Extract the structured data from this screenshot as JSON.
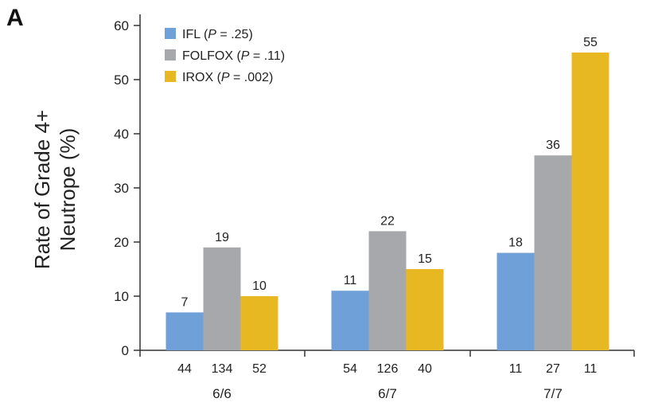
{
  "panel_label": "A",
  "colors": {
    "IFL": "#6fa0d8",
    "FOLFOX": "#a7a8ab",
    "IROX": "#e8b822"
  },
  "chart_data": {
    "type": "bar",
    "ylabel_lines": [
      "Rate of Grade 4+",
      "Neutrope (%)"
    ],
    "ylim": [
      0,
      60
    ],
    "yticks": [
      0,
      10,
      20,
      30,
      40,
      50,
      60
    ],
    "legend_position": "top-left",
    "grid": false,
    "categories": [
      "6/6",
      "6/7",
      "7/7"
    ],
    "series": [
      {
        "key": "IFL",
        "name": "IFL",
        "p_value": "= .25",
        "values": [
          7,
          11,
          18
        ],
        "n": [
          "44",
          "54",
          "11"
        ]
      },
      {
        "key": "FOLFOX",
        "name": "FOLFOX",
        "p_value": "= .11",
        "values": [
          19,
          22,
          36
        ],
        "n": [
          "134",
          "126",
          "27"
        ]
      },
      {
        "key": "IROX",
        "name": "IROX",
        "p_value": "= .002",
        "values": [
          10,
          15,
          55
        ],
        "n": [
          "52",
          "40",
          "11"
        ]
      }
    ],
    "value_labels": [
      [
        "7",
        "11",
        "18"
      ],
      [
        "19",
        "22",
        "36"
      ],
      [
        "10",
        "15",
        "55"
      ]
    ]
  }
}
